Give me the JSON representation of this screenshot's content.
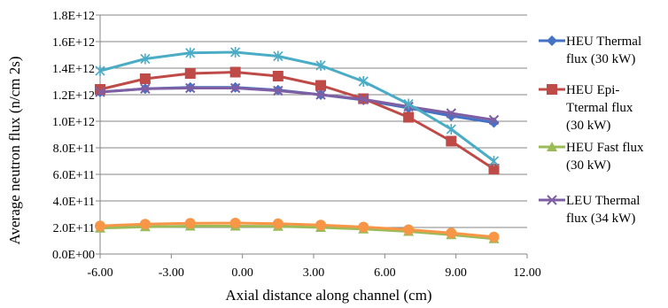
{
  "chart_data": {
    "type": "line",
    "title": "",
    "xlabel": "Axial distance along channel (cm)",
    "ylabel": "Average  neutron flux (n/cm 2s)",
    "xlim": [
      -6,
      12
    ],
    "ylim": [
      0,
      1800000000000.0
    ],
    "x_ticks": [
      -6,
      -3,
      0,
      3,
      6,
      9,
      12
    ],
    "x_tick_labels": [
      "-6.00",
      "-3.00",
      "0.00",
      "3.00",
      "6.00",
      "9.00",
      "12.00"
    ],
    "y_ticks": [
      0,
      200000000000.0,
      400000000000.0,
      600000000000.0,
      800000000000.0,
      1000000000000.0,
      1200000000000.0,
      1400000000000.0,
      1600000000000.0,
      1800000000000.0
    ],
    "y_tick_labels": [
      "0.0E+00",
      "2.0E+11",
      "4.0E+11",
      "6.0E+11",
      "8.0E+11",
      "1.0E+12",
      "1.2E+12",
      "1.4E+12",
      "1.6E+12",
      "1.8E+12"
    ],
    "grid": "horizontal",
    "legend_position": "right",
    "series": [
      {
        "name": "HEU Thermal flux (30 kW)",
        "legend_lines": [
          "HEU Thermal",
          "flux (30 kW)"
        ],
        "color": "#4472C4",
        "marker": "diamond",
        "x": [
          -6,
          -4.1,
          -2.2,
          -0.3,
          1.5,
          3.3,
          5.1,
          7,
          8.8,
          10.6
        ],
        "y": [
          1220000000000.0,
          1245000000000.0,
          1255000000000.0,
          1255000000000.0,
          1235000000000.0,
          1200000000000.0,
          1160000000000.0,
          1100000000000.0,
          1040000000000.0,
          990000000000.0
        ]
      },
      {
        "name": "HEU Epi-Ttermal flux (30 kW)",
        "legend_lines": [
          "HEU Epi-",
          "Ttermal flux",
          "(30 kW)"
        ],
        "color": "#BE4B48",
        "marker": "square",
        "x": [
          -6,
          -4.1,
          -2.2,
          -0.3,
          1.5,
          3.3,
          5.1,
          7,
          8.8,
          10.6
        ],
        "y": [
          1240000000000.0,
          1320000000000.0,
          1360000000000.0,
          1370000000000.0,
          1340000000000.0,
          1270000000000.0,
          1170000000000.0,
          1030000000000.0,
          850000000000.0,
          640000000000.0
        ]
      },
      {
        "name": "HEU Fast flux (30 kW)",
        "legend_lines": [
          "HEU Fast flux",
          "(30  kW)"
        ],
        "color": "#9BBB59",
        "marker": "triangle",
        "x": [
          -6,
          -4.1,
          -2.2,
          -0.3,
          1.5,
          3.3,
          5.1,
          7,
          8.8,
          10.6
        ],
        "y": [
          195000000000.0,
          205000000000.0,
          210000000000.0,
          210000000000.0,
          208000000000.0,
          200000000000.0,
          188000000000.0,
          170000000000.0,
          145000000000.0,
          115000000000.0
        ]
      },
      {
        "name": "LEU Thermal flux (34 kW)",
        "legend_lines": [
          "LEU Thermal",
          "flux  (34  kW)"
        ],
        "color": "#7F5FA3",
        "marker": "x",
        "x": [
          -6,
          -4.1,
          -2.2,
          -0.3,
          1.5,
          3.3,
          5.1,
          7,
          8.8,
          10.6
        ],
        "y": [
          1220000000000.0,
          1245000000000.0,
          1250000000000.0,
          1250000000000.0,
          1230000000000.0,
          1200000000000.0,
          1165000000000.0,
          1110000000000.0,
          1060000000000.0,
          1010000000000.0
        ]
      },
      {
        "name": "",
        "color": "#4BACC6",
        "marker": "star",
        "x": [
          -6,
          -4.1,
          -2.2,
          -0.3,
          1.5,
          3.3,
          5.1,
          7,
          8.8,
          10.6
        ],
        "y": [
          1380000000000.0,
          1470000000000.0,
          1515000000000.0,
          1520000000000.0,
          1490000000000.0,
          1420000000000.0,
          1300000000000.0,
          1130000000000.0,
          940000000000.0,
          700000000000.0
        ]
      },
      {
        "name": "",
        "color": "#F79646",
        "marker": "circle",
        "x": [
          -6,
          -4.1,
          -2.2,
          -0.3,
          1.5,
          3.3,
          5.1,
          7,
          8.8,
          10.6
        ],
        "y": [
          212000000000.0,
          225000000000.0,
          232000000000.0,
          233000000000.0,
          228000000000.0,
          218000000000.0,
          203000000000.0,
          183000000000.0,
          158000000000.0,
          128000000000.0
        ]
      }
    ]
  }
}
